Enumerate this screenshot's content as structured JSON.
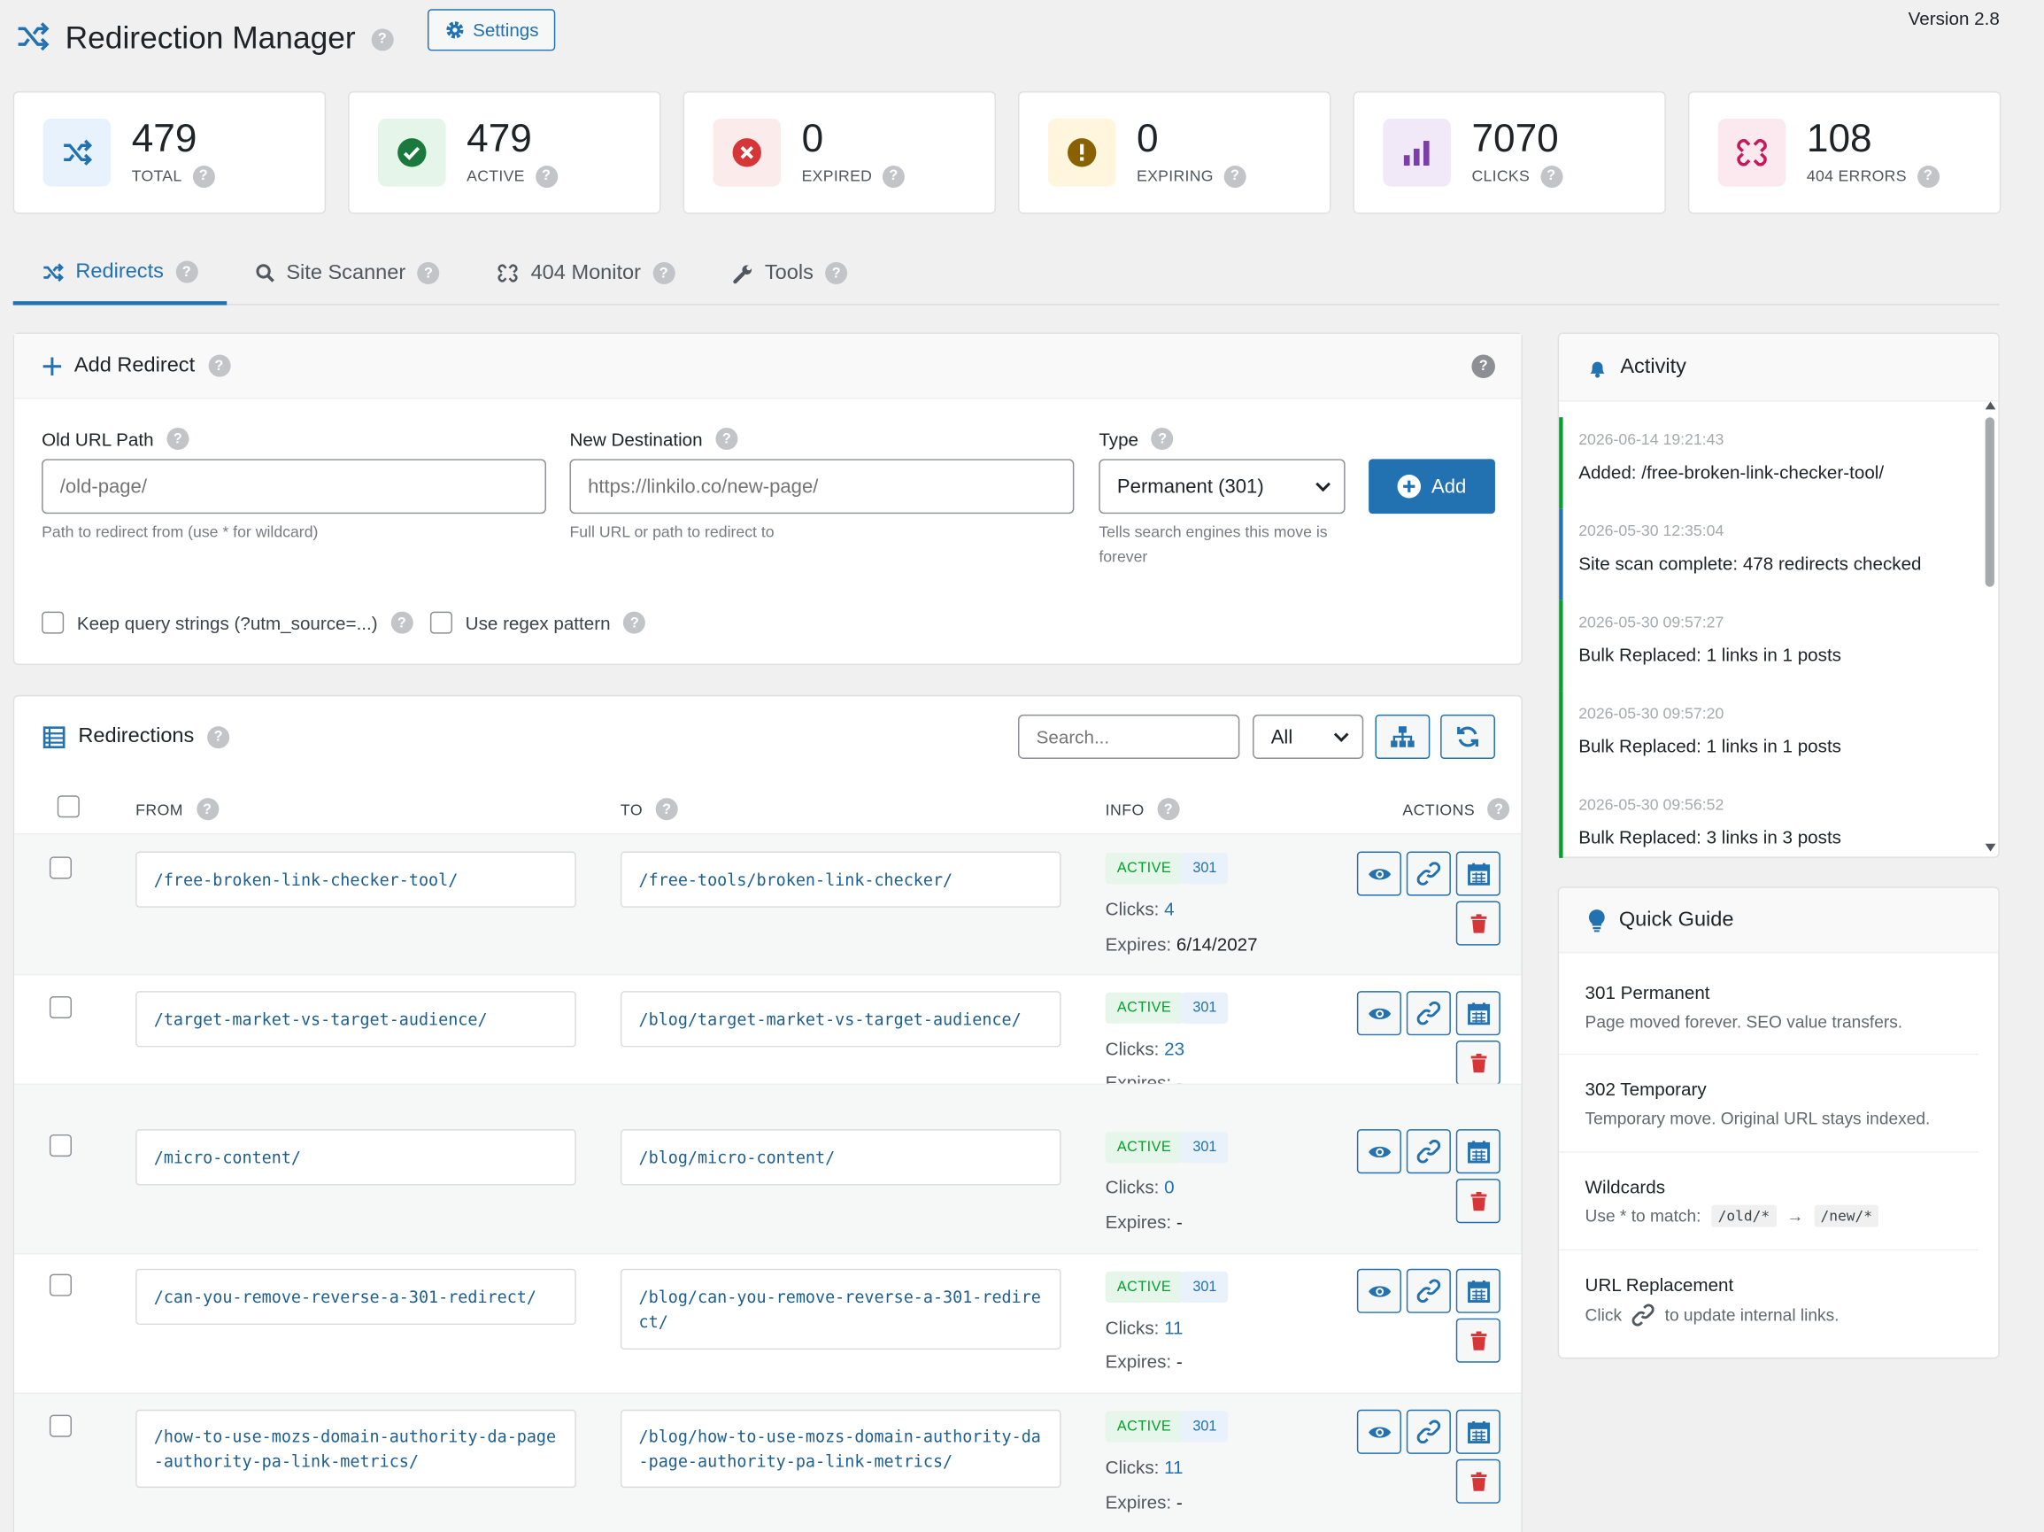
{
  "header": {
    "title": "Redirection Manager",
    "settings_label": "Settings",
    "version": "Version 2.8"
  },
  "stats": [
    {
      "value": "479",
      "label": "TOTAL",
      "icon": "shuffle-icon",
      "color": "#2271b1",
      "bg": "#e8f2fc"
    },
    {
      "value": "479",
      "label": "ACTIVE",
      "icon": "check-circle-icon",
      "color": "#00a32a",
      "bg": "#e5f5e9"
    },
    {
      "value": "0",
      "label": "EXPIRED",
      "icon": "x-circle-icon",
      "color": "#d63638",
      "bg": "#fcebeb"
    },
    {
      "value": "0",
      "label": "EXPIRING",
      "icon": "warning-icon",
      "color": "#9a6b00",
      "bg": "#fff6dd"
    },
    {
      "value": "7070",
      "label": "CLICKS",
      "icon": "bar-chart-icon",
      "color": "#7b3fa8",
      "bg": "#f1e8f8"
    },
    {
      "value": "108",
      "label": "404 ERRORS",
      "icon": "broken-link-icon",
      "color": "#c21a5a",
      "bg": "#fce8ef"
    }
  ],
  "tabs": [
    {
      "label": "Redirects",
      "icon": "shuffle-icon"
    },
    {
      "label": "Site Scanner",
      "icon": "search-icon"
    },
    {
      "label": "404 Monitor",
      "icon": "broken-link-icon"
    },
    {
      "label": "Tools",
      "icon": "wrench-icon"
    }
  ],
  "add_redirect": {
    "title": "Add Redirect",
    "old_label": "Old URL Path",
    "old_placeholder": "/old-page/",
    "old_hint": "Path to redirect from (use * for wildcard)",
    "new_label": "New Destination",
    "new_placeholder": "https://linkilo.co/new-page/",
    "new_hint": "Full URL or path to redirect to",
    "type_label": "Type",
    "type_value": "Permanent (301)",
    "type_hint": "Tells search engines this move is forever",
    "add_label": "Add",
    "opt_query": "Keep query strings (?utm_source=...)",
    "opt_regex": "Use regex pattern"
  },
  "redirections": {
    "title": "Redirections",
    "search_placeholder": "Search...",
    "filter_value": "All",
    "col_from": "FROM",
    "col_to": "TO",
    "col_info": "INFO",
    "col_actions": "ACTIONS",
    "clicks_label": "Clicks:",
    "expires_label": "Expires:",
    "rows": [
      {
        "from": "/free-broken-link-checker-tool/",
        "to": "/free-tools/broken-link-checker/",
        "status": "ACTIVE",
        "code": "301",
        "clicks": "4",
        "expires": "6/14/2027"
      },
      {
        "from": "/target-market-vs-target-audience/",
        "to": "/blog/target-market-vs-target-audience/",
        "status": "ACTIVE",
        "code": "301",
        "clicks": "23",
        "expires": "-"
      },
      {
        "from": "/micro-content/",
        "to": "/blog/micro-content/",
        "status": "ACTIVE",
        "code": "301",
        "clicks": "0",
        "expires": "-"
      },
      {
        "from": "/can-you-remove-reverse-a-301-redirect/",
        "to": "/blog/can-you-remove-reverse-a-301-redirect/",
        "status": "ACTIVE",
        "code": "301",
        "clicks": "11",
        "expires": "-"
      },
      {
        "from": "/how-to-use-mozs-domain-authority-da-page-authority-pa-link-metrics/",
        "to": "/blog/how-to-use-mozs-domain-authority-da-page-authority-pa-link-metrics/",
        "status": "ACTIVE",
        "code": "301",
        "clicks": "11",
        "expires": "-"
      }
    ]
  },
  "activity": {
    "title": "Activity",
    "items": [
      {
        "time": "2026-06-14 19:21:43",
        "text": "Added: /free-broken-link-checker-tool/"
      },
      {
        "time": "2026-05-30 12:35:04",
        "text": "Site scan complete: 478 redirects checked"
      },
      {
        "time": "2026-05-30 09:57:27",
        "text": "Bulk Replaced: 1 links in 1 posts"
      },
      {
        "time": "2026-05-30 09:57:20",
        "text": "Bulk Replaced: 1 links in 1 posts"
      },
      {
        "time": "2026-05-30 09:56:52",
        "text": "Bulk Replaced: 3 links in 3 posts"
      }
    ]
  },
  "quick_guide": {
    "title": "Quick Guide",
    "items": [
      {
        "title": "301 Permanent",
        "desc": "Page moved forever. SEO value transfers."
      },
      {
        "title": "302 Temporary",
        "desc": "Temporary move. Original URL stays indexed."
      },
      {
        "title": "Wildcards",
        "desc": "Use * to match:",
        "from": "/old/*",
        "arrow": "→",
        "to": "/new/*"
      },
      {
        "title": "URL Replacement",
        "desc_pre": "Click",
        "desc_post": "to update internal links."
      }
    ]
  }
}
